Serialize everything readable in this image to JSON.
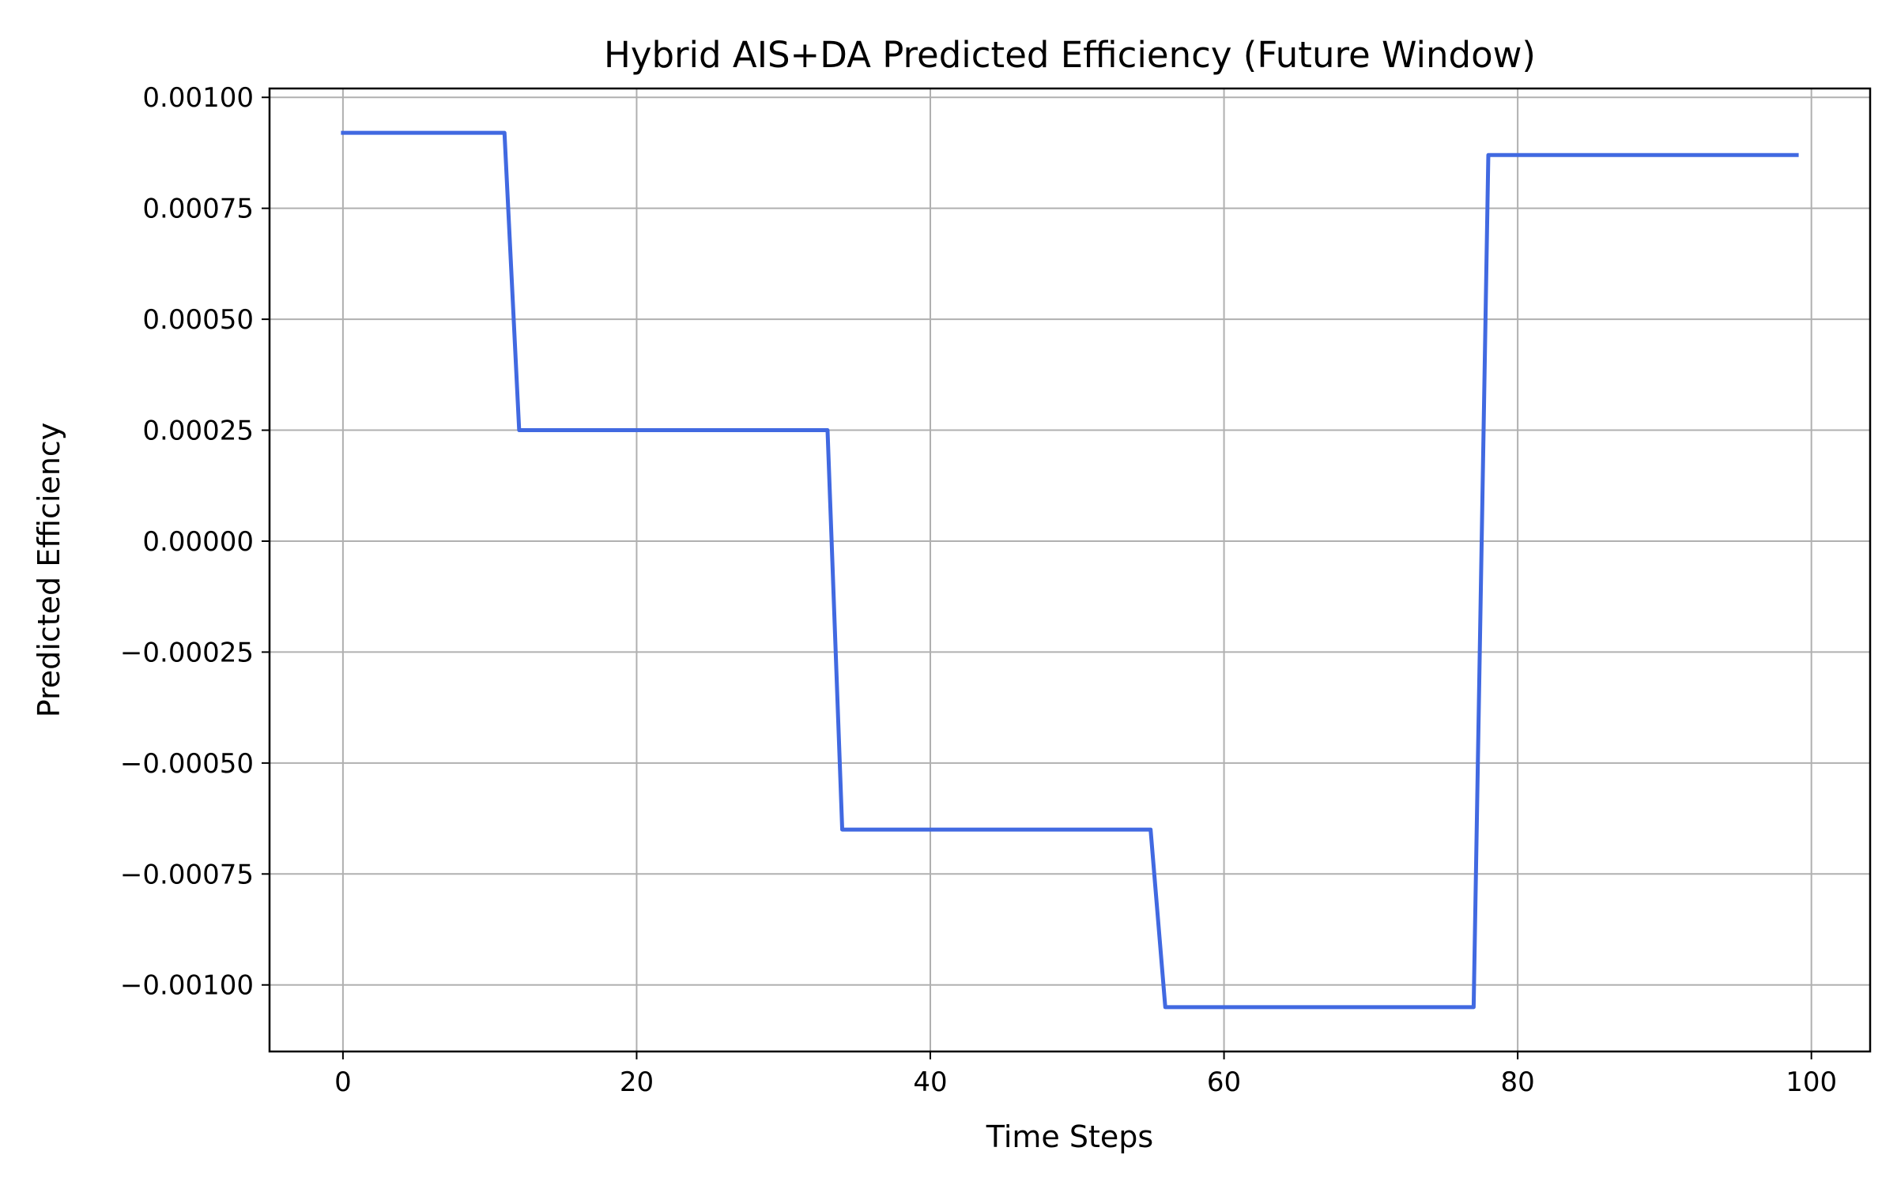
{
  "chart_data": {
    "type": "line",
    "title": "Hybrid AIS+DA Predicted Efficiency (Future Window)",
    "xlabel": "Time Steps",
    "ylabel": "Predicted Efficiency",
    "xlim": [
      -5,
      104
    ],
    "ylim": [
      -0.00115,
      0.00102
    ],
    "x_ticks": [
      0,
      20,
      40,
      60,
      80,
      100
    ],
    "x_tick_labels": [
      "0",
      "20",
      "40",
      "60",
      "80",
      "100"
    ],
    "y_ticks": [
      0.001,
      0.00075,
      0.0005,
      0.00025,
      0.0,
      -0.00025,
      -0.0005,
      -0.00075,
      -0.001
    ],
    "y_tick_labels": [
      "0.00100",
      "0.00075",
      "0.00050",
      "0.00025",
      "0.00000",
      "−0.00025",
      "−0.00050",
      "−0.00075",
      "−0.00100"
    ],
    "grid": true,
    "legend": "none",
    "series": [
      {
        "color": "#4169e1",
        "x": [
          0,
          11,
          12,
          33,
          34,
          55,
          56,
          77,
          78,
          99
        ],
        "y": [
          0.00092,
          0.00092,
          0.00025,
          0.00025,
          -0.00065,
          -0.00065,
          -0.00105,
          -0.00105,
          0.00087,
          0.00087
        ]
      }
    ]
  }
}
